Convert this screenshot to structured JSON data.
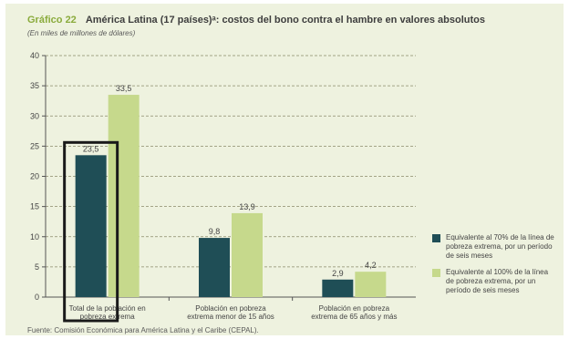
{
  "header": {
    "chart_number": "Gráfico 22",
    "title": "América Latina (17 países)ᵃ: costos del bono contra el hambre en valores absolutos",
    "subtitle": "(En miles de millones de dólares)"
  },
  "footer": {
    "source": "Fuente: Comisión Económica para América Latina y el Caribe (CEPAL)."
  },
  "colors": {
    "series1": "#1f4e56",
    "series2": "#c6d98c",
    "highlight_box": "#1a1a1a",
    "grid": "#8a8a6a",
    "panel": "#eef2df"
  },
  "chart_data": {
    "type": "bar",
    "title": "América Latina (17 países)ᵃ: costos del bono contra el hambre en valores absolutos",
    "ylabel": "",
    "xlabel": "",
    "ylim": [
      0,
      40
    ],
    "yticks": [
      0,
      5,
      10,
      15,
      20,
      25,
      30,
      35,
      40
    ],
    "grid": true,
    "legend_position": "right",
    "categories": [
      "Total de la población en pobreza extrema",
      "Población en pobreza extrema menor de 15 años",
      "Población en pobreza extrema de 65 años y más"
    ],
    "series": [
      {
        "name": "Equivalente al 70% de la línea de pobreza extrema, por un período de seis meses",
        "values": [
          23.5,
          9.8,
          2.9
        ],
        "labels": [
          "23,5",
          "9,8",
          "2,9"
        ]
      },
      {
        "name": "Equivalente al 100% de la línea de pobreza extrema, por un período de seis meses",
        "values": [
          33.5,
          13.9,
          4.2
        ],
        "labels": [
          "33,5",
          "13,9",
          "4,2"
        ]
      }
    ],
    "highlighted_category_index": 0
  }
}
